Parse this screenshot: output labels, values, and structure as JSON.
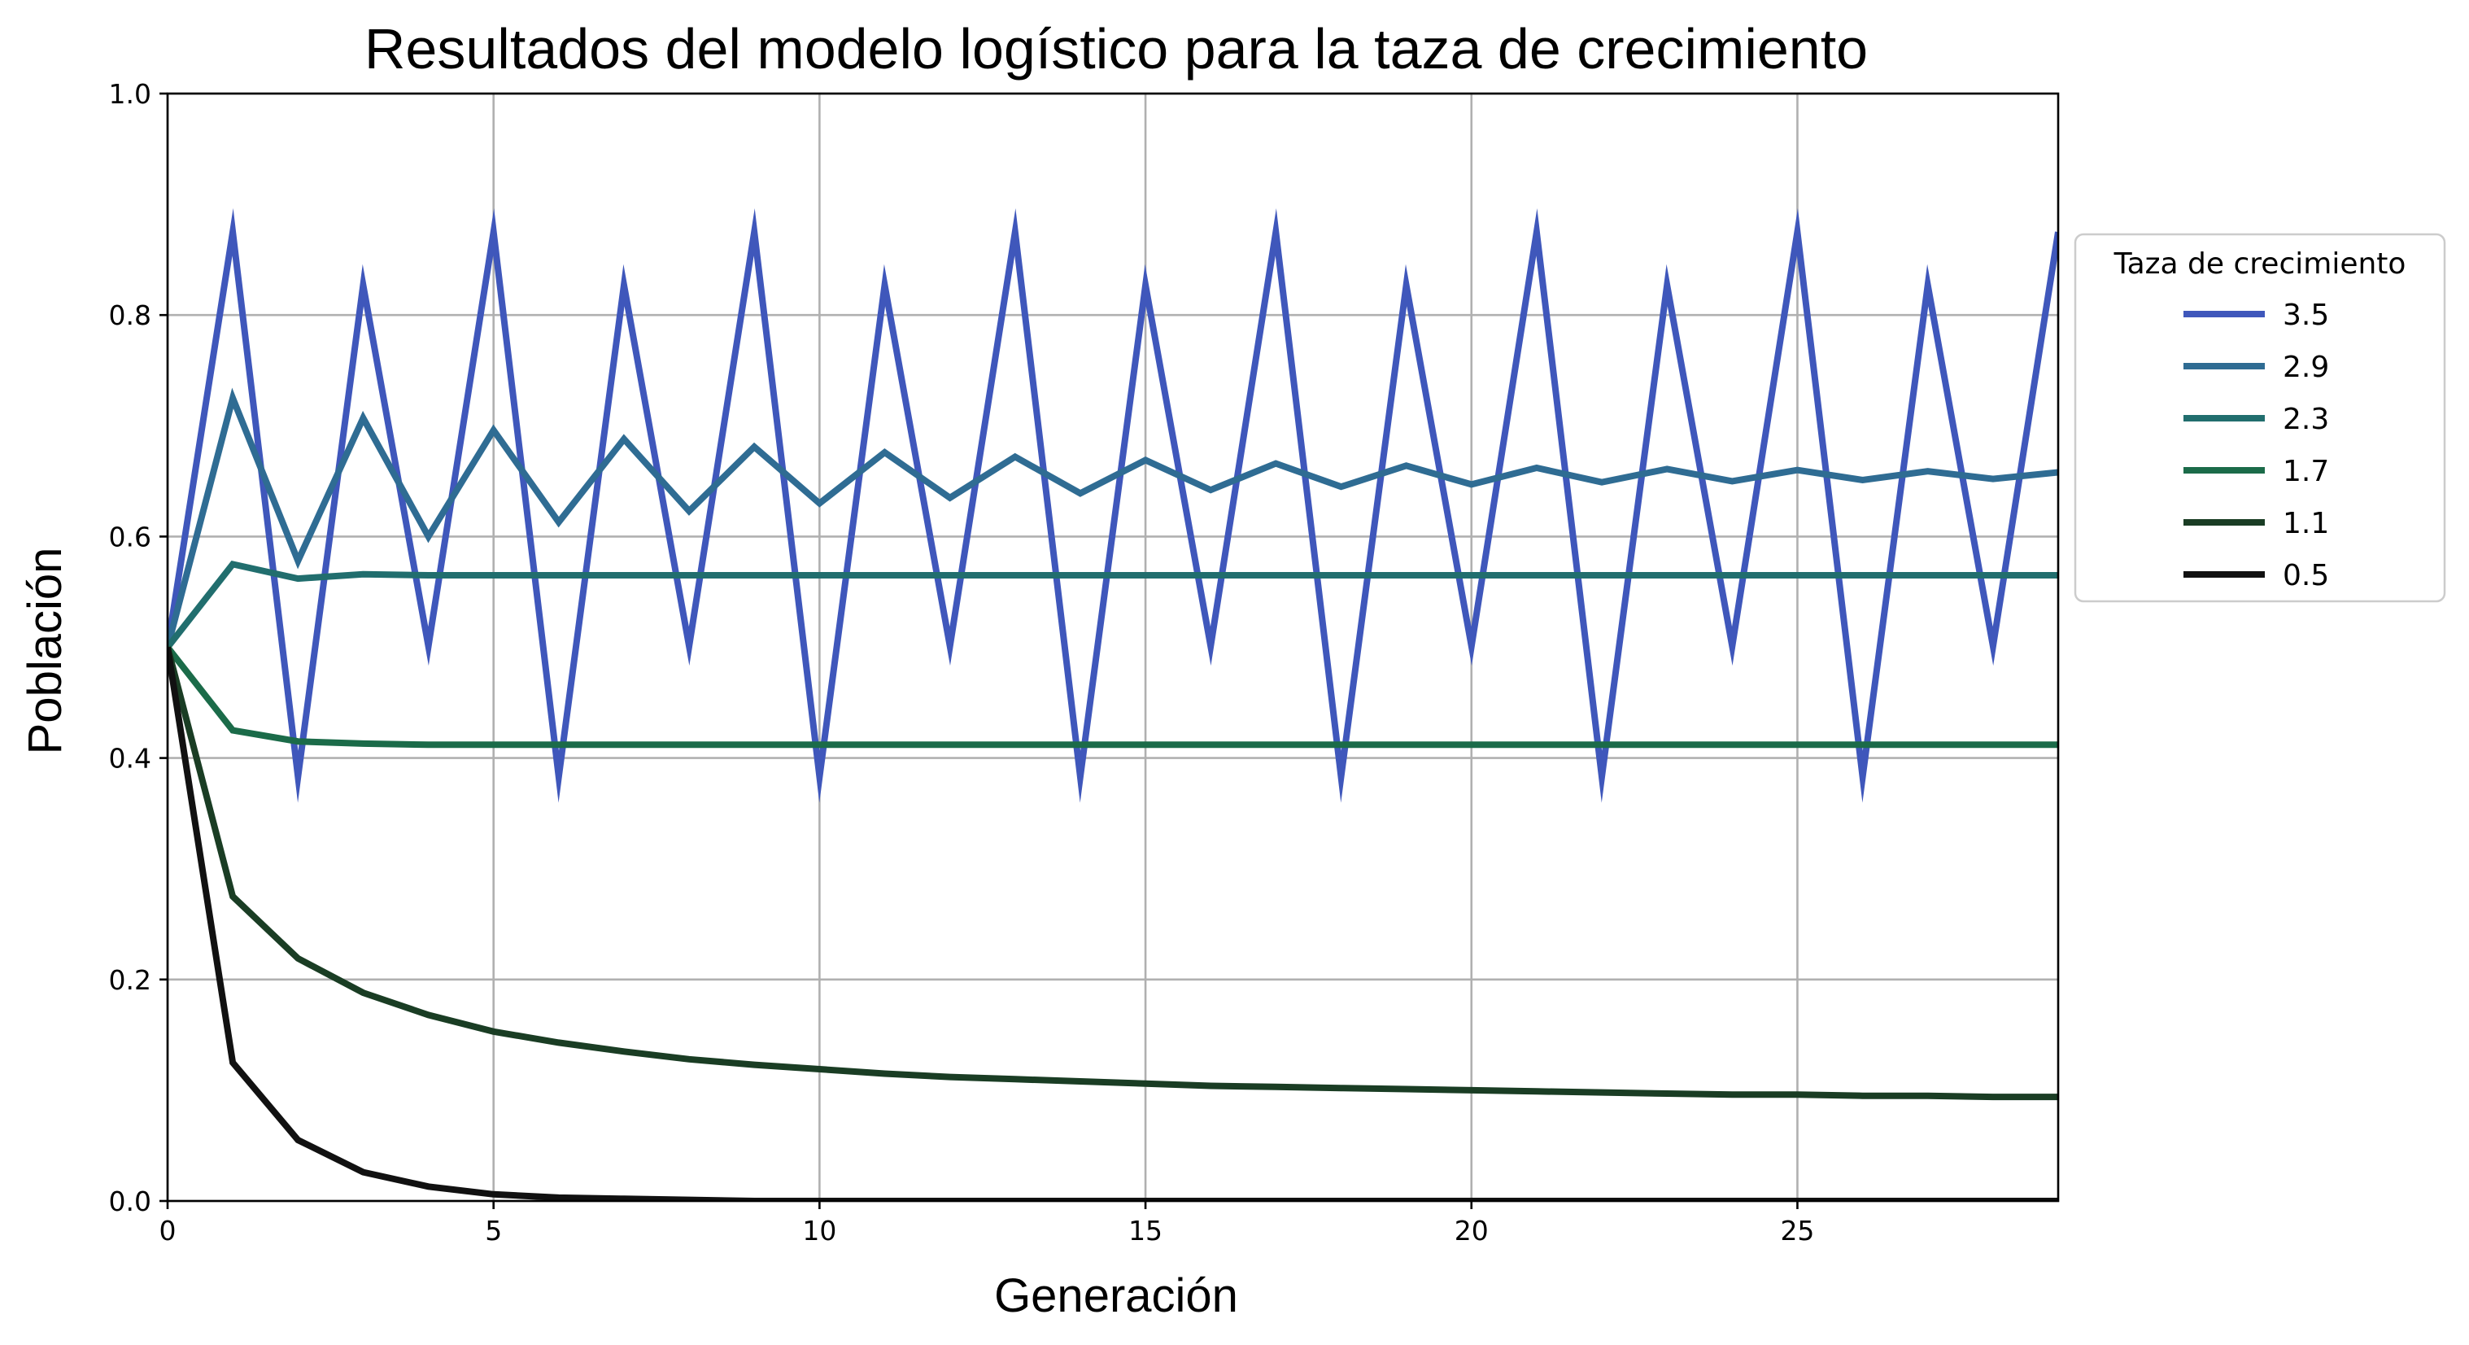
{
  "chart_data": {
    "type": "line",
    "title": "Resultados del modelo logístico para la taza de crecimiento",
    "xlabel": "Generación",
    "ylabel": "Población",
    "xlim": [
      0,
      29
    ],
    "ylim": [
      0,
      1.0
    ],
    "xticks": [
      0,
      5,
      10,
      15,
      20,
      25
    ],
    "yticks": [
      0.0,
      0.2,
      0.4,
      0.6,
      0.8,
      1.0
    ],
    "xtick_labels": [
      "0",
      "5",
      "10",
      "15",
      "20",
      "25"
    ],
    "ytick_labels": [
      "0.0",
      "0.2",
      "0.4",
      "0.6",
      "0.8",
      "1.0"
    ],
    "grid": true,
    "legend": {
      "title": "Taza de crecimiento",
      "placement": "outside-right"
    },
    "x": [
      0,
      1,
      2,
      3,
      4,
      5,
      6,
      7,
      8,
      9,
      10,
      11,
      12,
      13,
      14,
      15,
      16,
      17,
      18,
      19,
      20,
      21,
      22,
      23,
      24,
      25,
      26,
      27,
      28,
      29
    ],
    "series": [
      {
        "name": "3.5",
        "color": "#3f57bb",
        "values": [
          0.5,
          0.875,
          0.383,
          0.827,
          0.501,
          0.875,
          0.383,
          0.827,
          0.501,
          0.875,
          0.383,
          0.827,
          0.501,
          0.875,
          0.383,
          0.827,
          0.501,
          0.875,
          0.383,
          0.827,
          0.501,
          0.875,
          0.383,
          0.827,
          0.501,
          0.875,
          0.383,
          0.827,
          0.501,
          0.875
        ]
      },
      {
        "name": "2.9",
        "color": "#2f6c93",
        "values": [
          0.5,
          0.725,
          0.578,
          0.707,
          0.6,
          0.696,
          0.613,
          0.688,
          0.623,
          0.681,
          0.63,
          0.676,
          0.635,
          0.672,
          0.639,
          0.669,
          0.642,
          0.666,
          0.645,
          0.664,
          0.647,
          0.662,
          0.649,
          0.661,
          0.65,
          0.66,
          0.651,
          0.659,
          0.652,
          0.658
        ]
      },
      {
        "name": "2.3",
        "color": "#216e6e",
        "values": [
          0.5,
          0.575,
          0.562,
          0.566,
          0.565,
          0.565,
          0.565,
          0.565,
          0.565,
          0.565,
          0.565,
          0.565,
          0.565,
          0.565,
          0.565,
          0.565,
          0.565,
          0.565,
          0.565,
          0.565,
          0.565,
          0.565,
          0.565,
          0.565,
          0.565,
          0.565,
          0.565,
          0.565,
          0.565,
          0.565
        ]
      },
      {
        "name": "1.7",
        "color": "#1b6b49",
        "values": [
          0.5,
          0.425,
          0.415,
          0.413,
          0.412,
          0.412,
          0.412,
          0.412,
          0.412,
          0.412,
          0.412,
          0.412,
          0.412,
          0.412,
          0.412,
          0.412,
          0.412,
          0.412,
          0.412,
          0.412,
          0.412,
          0.412,
          0.412,
          0.412,
          0.412,
          0.412,
          0.412,
          0.412,
          0.412,
          0.412
        ]
      },
      {
        "name": "1.1",
        "color": "#1a3d24",
        "values": [
          0.5,
          0.275,
          0.219,
          0.188,
          0.168,
          0.153,
          0.143,
          0.135,
          0.128,
          0.123,
          0.119,
          0.115,
          0.112,
          0.11,
          0.108,
          0.106,
          0.104,
          0.103,
          0.102,
          0.101,
          0.1,
          0.099,
          0.098,
          0.097,
          0.096,
          0.096,
          0.095,
          0.095,
          0.094,
          0.094
        ]
      },
      {
        "name": "0.5",
        "color": "#111111",
        "values": [
          0.5,
          0.125,
          0.055,
          0.026,
          0.013,
          0.006,
          0.003,
          0.002,
          0.001,
          0.0,
          0.0,
          0.0,
          0.0,
          0.0,
          0.0,
          0.0,
          0.0,
          0.0,
          0.0,
          0.0,
          0.0,
          0.0,
          0.0,
          0.0,
          0.0,
          0.0,
          0.0,
          0.0,
          0.0,
          0.0
        ]
      }
    ]
  }
}
